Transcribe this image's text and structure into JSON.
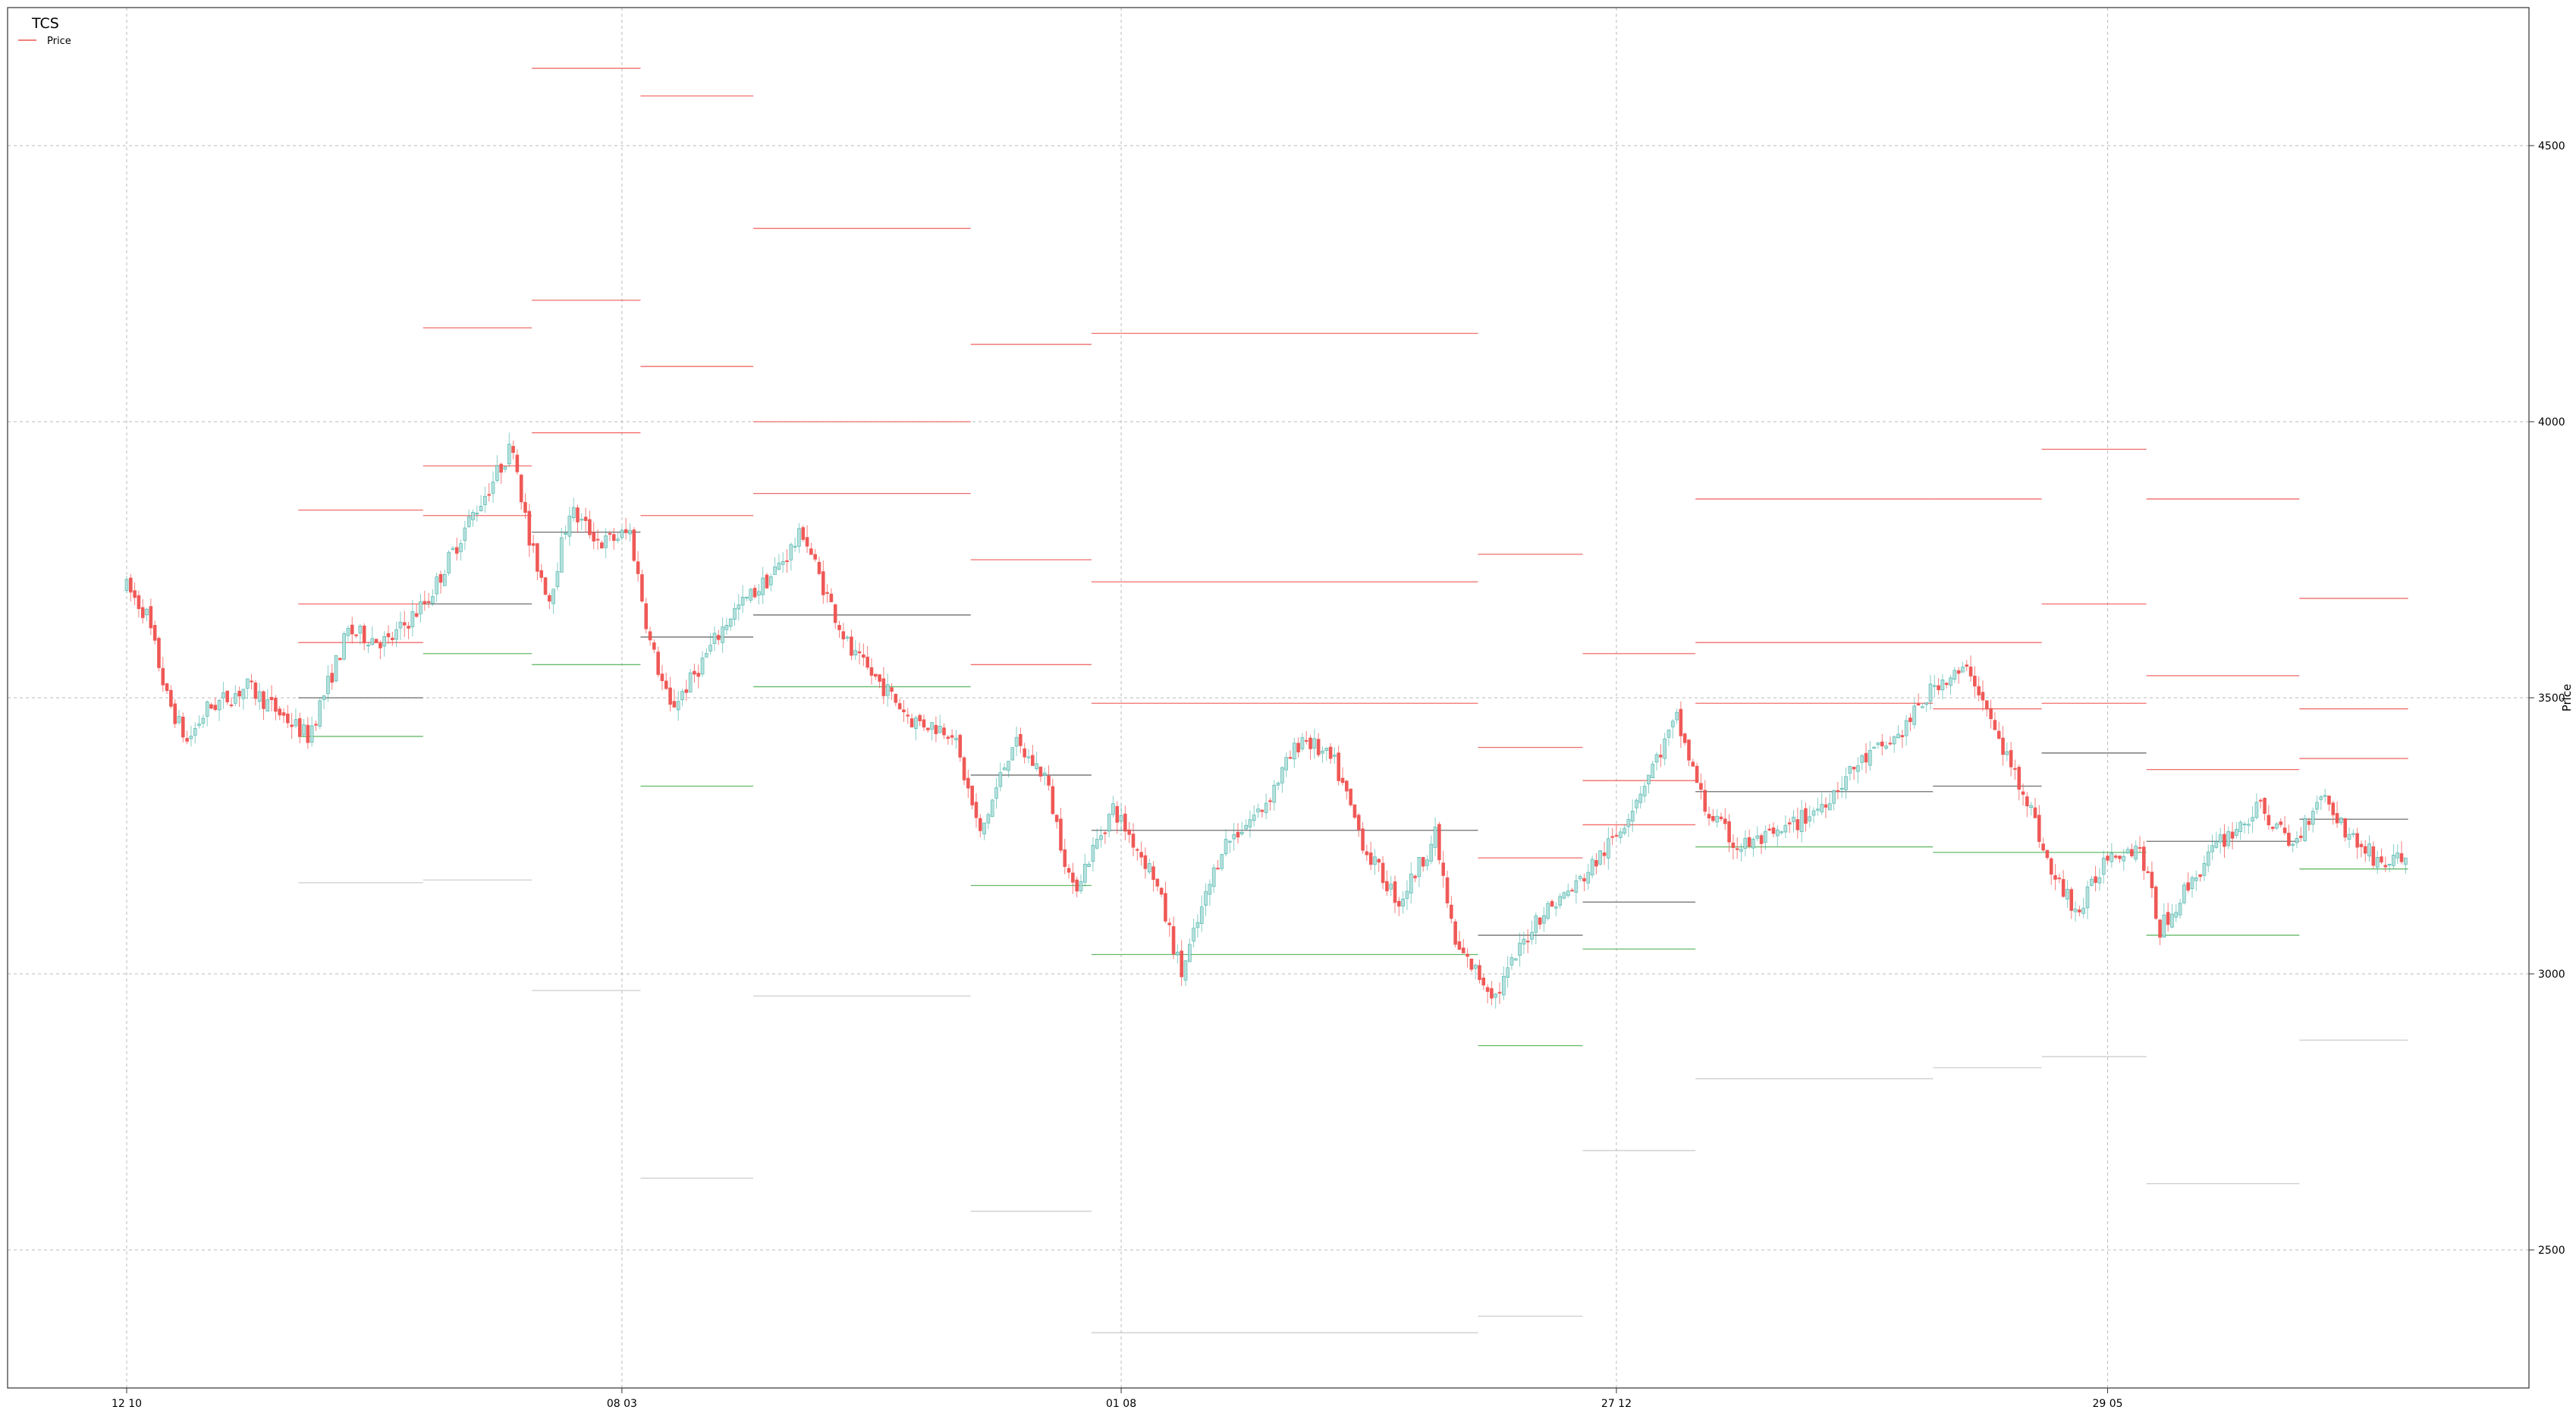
{
  "chart_data": {
    "type": "candlestick",
    "title": "TCS",
    "legend": {
      "label": "Price",
      "position": "top-left"
    },
    "ylabel": "Price",
    "ylim": [
      2250,
      4750
    ],
    "yticks": [
      2500,
      3000,
      3500,
      4000,
      4500
    ],
    "xticks": [
      "12 10",
      "08 03",
      "01 08",
      "27 12",
      "29 05"
    ],
    "grid": true,
    "colors": {
      "up": "#26a69a",
      "down": "#ef5350",
      "resistance": "#ef5350",
      "support": "#4caf50",
      "pivot": "#555555",
      "range": "#c8c8c8",
      "grid": "#bbbbbb"
    },
    "price_anchors": [
      [
        0,
        3700
      ],
      [
        5,
        3650
      ],
      [
        10,
        3500
      ],
      [
        15,
        3420
      ],
      [
        20,
        3480
      ],
      [
        30,
        3520
      ],
      [
        40,
        3460
      ],
      [
        45,
        3430
      ],
      [
        55,
        3620
      ],
      [
        65,
        3600
      ],
      [
        75,
        3680
      ],
      [
        85,
        3820
      ],
      [
        90,
        3880
      ],
      [
        96,
        3960
      ],
      [
        100,
        3780
      ],
      [
        105,
        3680
      ],
      [
        110,
        3840
      ],
      [
        118,
        3780
      ],
      [
        125,
        3800
      ],
      [
        130,
        3600
      ],
      [
        135,
        3480
      ],
      [
        140,
        3530
      ],
      [
        150,
        3650
      ],
      [
        160,
        3720
      ],
      [
        168,
        3800
      ],
      [
        172,
        3720
      ],
      [
        180,
        3580
      ],
      [
        188,
        3520
      ],
      [
        195,
        3460
      ],
      [
        205,
        3440
      ],
      [
        212,
        3250
      ],
      [
        220,
        3420
      ],
      [
        228,
        3360
      ],
      [
        235,
        3150
      ],
      [
        245,
        3300
      ],
      [
        255,
        3180
      ],
      [
        262,
        3000
      ],
      [
        272,
        3230
      ],
      [
        282,
        3300
      ],
      [
        292,
        3430
      ],
      [
        300,
        3380
      ],
      [
        308,
        3220
      ],
      [
        316,
        3130
      ],
      [
        325,
        3250
      ],
      [
        330,
        3050
      ],
      [
        340,
        2960
      ],
      [
        350,
        3100
      ],
      [
        360,
        3160
      ],
      [
        370,
        3250
      ],
      [
        380,
        3390
      ],
      [
        385,
        3460
      ],
      [
        392,
        3300
      ],
      [
        400,
        3230
      ],
      [
        410,
        3250
      ],
      [
        420,
        3300
      ],
      [
        430,
        3380
      ],
      [
        440,
        3430
      ],
      [
        450,
        3530
      ],
      [
        458,
        3550
      ],
      [
        465,
        3420
      ],
      [
        472,
        3320
      ],
      [
        478,
        3180
      ],
      [
        485,
        3110
      ],
      [
        492,
        3220
      ],
      [
        500,
        3230
      ],
      [
        505,
        3080
      ],
      [
        512,
        3160
      ],
      [
        520,
        3240
      ],
      [
        530,
        3300
      ],
      [
        538,
        3230
      ],
      [
        545,
        3330
      ],
      [
        552,
        3250
      ],
      [
        560,
        3200
      ],
      [
        566,
        3210
      ]
    ],
    "level_segments": [
      {
        "s": 43,
        "e": 74,
        "lines": [
          [
            3840,
            "r"
          ],
          [
            3670,
            "r"
          ],
          [
            3600,
            "r"
          ],
          [
            3500,
            "p"
          ],
          [
            3430,
            "g"
          ],
          [
            3165,
            "n"
          ]
        ]
      },
      {
        "s": 74,
        "e": 101,
        "lines": [
          [
            4170,
            "r"
          ],
          [
            3920,
            "r"
          ],
          [
            3830,
            "r"
          ],
          [
            3670,
            "p"
          ],
          [
            3580,
            "g"
          ],
          [
            3170,
            "n"
          ]
        ]
      },
      {
        "s": 101,
        "e": 128,
        "lines": [
          [
            4640,
            "r"
          ],
          [
            4220,
            "r"
          ],
          [
            3980,
            "r"
          ],
          [
            3800,
            "p"
          ],
          [
            3560,
            "g"
          ],
          [
            2970,
            "n"
          ]
        ]
      },
      {
        "s": 128,
        "e": 156,
        "lines": [
          [
            4590,
            "r"
          ],
          [
            4100,
            "r"
          ],
          [
            3830,
            "r"
          ],
          [
            3610,
            "p"
          ],
          [
            3340,
            "g"
          ],
          [
            2630,
            "n"
          ]
        ]
      },
      {
        "s": 156,
        "e": 210,
        "lines": [
          [
            4350,
            "r"
          ],
          [
            4000,
            "r"
          ],
          [
            3870,
            "r"
          ],
          [
            3650,
            "p"
          ],
          [
            3520,
            "g"
          ],
          [
            2960,
            "n"
          ]
        ]
      },
      {
        "s": 210,
        "e": 240,
        "lines": [
          [
            4140,
            "r"
          ],
          [
            3750,
            "r"
          ],
          [
            3560,
            "r"
          ],
          [
            3360,
            "p"
          ],
          [
            3160,
            "g"
          ],
          [
            2570,
            "n"
          ]
        ]
      },
      {
        "s": 240,
        "e": 336,
        "lines": [
          [
            4160,
            "r"
          ],
          [
            3710,
            "r"
          ],
          [
            3490,
            "r"
          ],
          [
            3260,
            "p"
          ],
          [
            3035,
            "g"
          ],
          [
            2350,
            "n"
          ]
        ]
      },
      {
        "s": 336,
        "e": 362,
        "lines": [
          [
            3760,
            "r"
          ],
          [
            3410,
            "r"
          ],
          [
            3210,
            "r"
          ],
          [
            3070,
            "p"
          ],
          [
            2870,
            "g"
          ],
          [
            2380,
            "n"
          ]
        ]
      },
      {
        "s": 362,
        "e": 390,
        "lines": [
          [
            3580,
            "r"
          ],
          [
            3350,
            "r"
          ],
          [
            3270,
            "r"
          ],
          [
            3130,
            "p"
          ],
          [
            3045,
            "g"
          ],
          [
            2680,
            "n"
          ]
        ]
      },
      {
        "s": 390,
        "e": 449,
        "lines": [
          [
            3860,
            "r"
          ],
          [
            3600,
            "r"
          ],
          [
            3490,
            "r"
          ],
          [
            3330,
            "p"
          ],
          [
            3230,
            "g"
          ],
          [
            2810,
            "n"
          ]
        ]
      },
      {
        "s": 449,
        "e": 476,
        "lines": [
          [
            3860,
            "r"
          ],
          [
            3600,
            "r"
          ],
          [
            3480,
            "r"
          ],
          [
            3340,
            "p"
          ],
          [
            3220,
            "g"
          ],
          [
            2830,
            "n"
          ]
        ]
      },
      {
        "s": 476,
        "e": 502,
        "lines": [
          [
            3950,
            "r"
          ],
          [
            3670,
            "r"
          ],
          [
            3490,
            "r"
          ],
          [
            3400,
            "p"
          ],
          [
            3220,
            "g"
          ],
          [
            2850,
            "n"
          ]
        ]
      },
      {
        "s": 502,
        "e": 540,
        "lines": [
          [
            3860,
            "r"
          ],
          [
            3540,
            "r"
          ],
          [
            3370,
            "r"
          ],
          [
            3240,
            "p"
          ],
          [
            3070,
            "g"
          ],
          [
            2620,
            "n"
          ]
        ]
      },
      {
        "s": 540,
        "e": 567,
        "lines": [
          [
            3680,
            "r"
          ],
          [
            3480,
            "r"
          ],
          [
            3390,
            "r"
          ],
          [
            3280,
            "p"
          ],
          [
            3190,
            "g"
          ],
          [
            2880,
            "n"
          ]
        ]
      }
    ]
  }
}
